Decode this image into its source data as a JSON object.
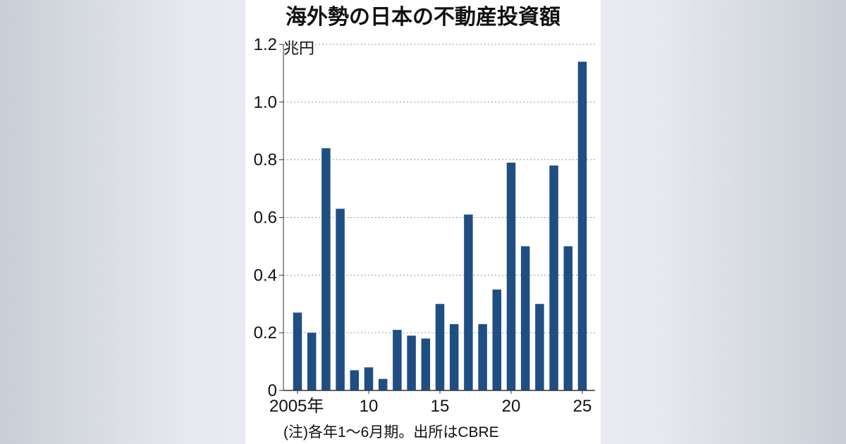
{
  "chart_data": {
    "type": "bar",
    "title": "海外勢の日本の不動産投資額",
    "unit_label": "兆円",
    "note": "(注)各年1～6月期。出所はCBRE",
    "ylim": [
      0,
      1.2
    ],
    "yticks": [
      "0",
      "0.2",
      "0.4",
      "0.6",
      "0.8",
      "1.0",
      "1.2"
    ],
    "x_tick_labels": [
      {
        "year": 2005,
        "label": "2005年"
      },
      {
        "year": 2010,
        "label": "10"
      },
      {
        "year": 2015,
        "label": "15"
      },
      {
        "year": 2020,
        "label": "20"
      },
      {
        "year": 2025,
        "label": "25"
      }
    ],
    "categories": [
      2005,
      2006,
      2007,
      2008,
      2009,
      2010,
      2011,
      2012,
      2013,
      2014,
      2015,
      2016,
      2017,
      2018,
      2019,
      2020,
      2021,
      2022,
      2023,
      2024,
      2025
    ],
    "values": [
      0.27,
      0.2,
      0.84,
      0.63,
      0.07,
      0.08,
      0.04,
      0.21,
      0.19,
      0.18,
      0.3,
      0.23,
      0.61,
      0.23,
      0.35,
      0.79,
      0.5,
      0.3,
      0.78,
      0.5,
      1.14
    ],
    "grid": true,
    "bar_color": "#1f4e82"
  }
}
